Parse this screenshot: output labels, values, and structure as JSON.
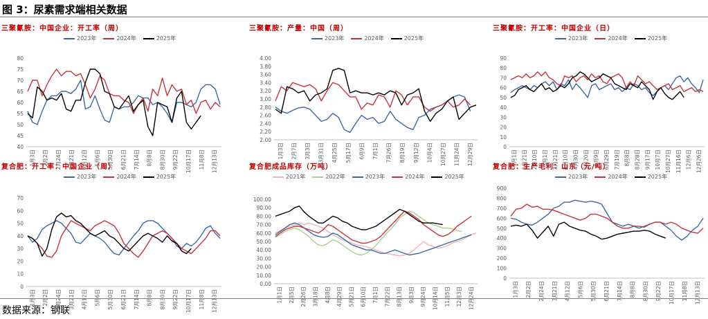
{
  "figure_title": "图 3：尿素需求端相关数据",
  "source": "数据来源：钢联",
  "chart_data": [
    {
      "type": "line",
      "title": "三聚氰胺：中国企业：开工率（周）",
      "ylim": [
        40,
        80
      ],
      "yticks": [
        "40",
        "45",
        "50",
        "55",
        "60",
        "65",
        "70",
        "75",
        "80"
      ],
      "xlabels": [
        "1月3日",
        "2月2日",
        "2月24日",
        "3月21日",
        "4月12日",
        "5月6日",
        "5月30日",
        "6月21日",
        "7月14日",
        "8月8日",
        "8月30日",
        "9月22日",
        "10月17日",
        "11月8日",
        "12月13日"
      ],
      "series": [
        {
          "name": "2023年",
          "color": "#3a67a8",
          "values": [
            56,
            51,
            50,
            56,
            61,
            63,
            63,
            65,
            65,
            64,
            66,
            70,
            57,
            58,
            63,
            57,
            52,
            51,
            58,
            57,
            58,
            58,
            60,
            63,
            62,
            62,
            59,
            60,
            58,
            55,
            51,
            60,
            60,
            59,
            58,
            60,
            66,
            68,
            68,
            66,
            59
          ]
        },
        {
          "name": "2024年",
          "color": "#c8323a",
          "values": [
            65,
            70,
            70,
            63,
            68,
            72,
            75,
            72,
            74,
            74,
            72,
            73,
            68,
            62,
            66,
            72,
            70,
            64,
            63,
            63,
            61,
            60,
            55,
            59,
            62,
            56,
            66,
            63,
            71,
            63,
            68,
            65,
            66,
            59,
            61,
            55,
            60,
            61,
            57,
            60,
            58
          ]
        },
        {
          "name": "2025年",
          "color": "#000000",
          "values": [
            55,
            53,
            67,
            65,
            61,
            62,
            61,
            64,
            57,
            56,
            61,
            61,
            69,
            75,
            75,
            73,
            65,
            64,
            58,
            57,
            60,
            63,
            56,
            59,
            61,
            49,
            45,
            60,
            59,
            58,
            51,
            62,
            65,
            51,
            48,
            51,
            54
          ]
        }
      ]
    },
    {
      "type": "line",
      "title": "三聚氰胺：产量：中国（周）",
      "ylim": [
        2.0,
        4.0
      ],
      "yticks": [
        "2.00",
        "2.20",
        "2.40",
        "2.60",
        "2.80",
        "3.00",
        "3.20",
        "3.40",
        "3.60",
        "3.80",
        "4.00"
      ],
      "xlabels": [
        "1月3日",
        "2月7日",
        "3月3日",
        "3月31日",
        "4月25日",
        "5月17日",
        "6月9日",
        "7月1日",
        "7月26日",
        "8月19日",
        "9月12日",
        "10月4日",
        "10月27日",
        "11月24日",
        "12月29日"
      ],
      "series": [
        {
          "name": "2023年",
          "color": "#3a67a8",
          "values": [
            2.8,
            2.7,
            2.65,
            2.72,
            2.78,
            2.8,
            2.75,
            2.6,
            2.45,
            2.5,
            2.65,
            2.55,
            2.25,
            2.18,
            2.4,
            2.6,
            2.5,
            2.55,
            2.4,
            2.45,
            2.7,
            2.5,
            2.4,
            2.3,
            2.25,
            2.55,
            2.6,
            2.75,
            2.8,
            2.85,
            2.95,
            3.05,
            3.1,
            3.05,
            2.7
          ]
        },
        {
          "name": "2024年",
          "color": "#c8323a",
          "values": [
            2.95,
            3.3,
            3.2,
            3.4,
            3.35,
            3.3,
            3.35,
            3.25,
            2.95,
            3.2,
            3.4,
            3.35,
            3.2,
            3.05,
            3.05,
            2.75,
            2.9,
            2.85,
            3.1,
            3.05,
            2.8,
            3.2,
            3.1,
            2.85,
            3.05,
            3.05,
            2.8,
            2.7,
            2.8,
            2.85,
            2.95,
            2.8,
            2.85,
            3.0,
            2.85
          ]
        },
        {
          "name": "2025年",
          "color": "#000000",
          "values": [
            2.75,
            2.65,
            3.3,
            3.25,
            3.15,
            3.2,
            2.95,
            3.1,
            3.15,
            3.25,
            3.7,
            3.75,
            3.7,
            3.15,
            3.2,
            3.15,
            3.15,
            3.1,
            3.15,
            3.1,
            3.2,
            3.15,
            2.85,
            3.1,
            3.15,
            3.25,
            2.7,
            2.45,
            2.65,
            2.75,
            2.95,
            3.05,
            2.5,
            2.65,
            2.8,
            2.85
          ]
        }
      ]
    },
    {
      "type": "line",
      "title": "三聚氰胺：开工率：中国企业（日）",
      "ylim": [
        0,
        90
      ],
      "yticks": [
        "0",
        "10",
        "20",
        "30",
        "40",
        "50",
        "60",
        "70",
        "80",
        "90"
      ],
      "xlabels": [
        "1月1日",
        "1月21日",
        "2月10日",
        "3月1日",
        "3月21日",
        "4月10日",
        "4月30日",
        "5月20日",
        "6月9日",
        "6月29日",
        "7月19日",
        "8月8日",
        "8月28日",
        "9月17日",
        "10月7日",
        "10月27日",
        "11月16日",
        "12月6日",
        "12月26日"
      ],
      "series": [
        {
          "name": "2023年",
          "color": "#3a67a8",
          "values": [
            55,
            58,
            60,
            62,
            60,
            58,
            62,
            60,
            64,
            66,
            62,
            66,
            58,
            64,
            62,
            68,
            58,
            64,
            60,
            55,
            50,
            62,
            64,
            58,
            60,
            62,
            64,
            58,
            60,
            56,
            60,
            58,
            64,
            62,
            58,
            60,
            55,
            52,
            56,
            60,
            62,
            58,
            64,
            70,
            72,
            66,
            70,
            64,
            60,
            55,
            68
          ]
        },
        {
          "name": "2024年",
          "color": "#c8323a",
          "values": [
            68,
            70,
            72,
            70,
            74,
            70,
            72,
            76,
            72,
            76,
            70,
            68,
            64,
            62,
            72,
            70,
            72,
            66,
            70,
            72,
            68,
            74,
            70,
            72,
            66,
            64,
            70,
            72,
            74,
            70,
            60,
            66,
            62,
            72,
            68,
            64,
            66,
            62,
            58,
            60,
            62,
            64,
            58,
            60,
            62,
            56,
            58,
            60,
            56,
            58,
            56
          ]
        },
        {
          "name": "2025年",
          "color": "#000000",
          "values": [
            50,
            52,
            58,
            60,
            62,
            58,
            56,
            60,
            64,
            58,
            60,
            56,
            58,
            62,
            60,
            64,
            70,
            72,
            76,
            74,
            70,
            66,
            68,
            70,
            74,
            72,
            70,
            64,
            62,
            60,
            58,
            64,
            62,
            60,
            66,
            62,
            58,
            48,
            56,
            60,
            54,
            50,
            48,
            52,
            56,
            50
          ]
        }
      ]
    },
    {
      "type": "line",
      "title": "复合肥：开工率：中国企业（周）",
      "ylim": [
        0,
        70
      ],
      "yticks": [
        "0",
        "10",
        "20",
        "30",
        "40",
        "50",
        "60",
        "70"
      ],
      "xlabels": [
        "1月3日",
        "2月2日",
        "2月24日",
        "3月21日",
        "4月12日",
        "5月6日",
        "5月30日",
        "6月21日",
        "7月14日",
        "8月8日",
        "8月30日",
        "9月22日",
        "10月17日",
        "11月8日",
        "12月13日"
      ],
      "series": [
        {
          "name": "2023年",
          "color": "#3a67a8",
          "values": [
            40,
            35,
            38,
            45,
            48,
            50,
            52,
            50,
            46,
            42,
            35,
            34,
            38,
            42,
            40,
            38,
            35,
            30,
            26,
            25,
            30,
            35,
            40,
            44,
            50,
            52,
            52,
            50,
            46,
            42,
            38,
            32,
            30,
            34,
            32,
            35,
            40,
            46,
            48,
            42,
            38
          ]
        },
        {
          "name": "2024年",
          "color": "#c8323a",
          "values": [
            40,
            38,
            34,
            30,
            24,
            23,
            28,
            40,
            46,
            52,
            50,
            48,
            46,
            44,
            48,
            50,
            52,
            50,
            48,
            42,
            34,
            30,
            26,
            23,
            28,
            34,
            40,
            42,
            44,
            42,
            38,
            34,
            30,
            28,
            26,
            30,
            34,
            38,
            44,
            44,
            40
          ]
        },
        {
          "name": "2025年",
          "color": "#000000",
          "values": [
            40,
            38,
            34,
            24,
            30,
            45,
            55,
            58,
            55,
            56,
            52,
            50,
            46,
            42,
            40,
            42,
            44,
            40,
            38,
            34,
            30,
            28,
            32,
            36,
            40,
            42,
            40,
            38,
            35,
            40,
            36,
            34,
            28,
            26,
            30
          ]
        }
      ]
    },
    {
      "type": "line",
      "title": "复合肥成品库存（万吨）",
      "ylim": [
        0,
        100
      ],
      "yticks": [
        "0.00",
        "10.00",
        "20.00",
        "30.00",
        "40.00",
        "50.00",
        "60.00",
        "70.00",
        "80.00",
        "90.00",
        "100.00"
      ],
      "xlabels": [
        "1月1日",
        "2月5日",
        "2月26日",
        "3月18日",
        "4月8日",
        "4月29日",
        "5月21日",
        "6月10日",
        "7月1日",
        "7月22日",
        "8月13日",
        "9月3日",
        "9月24日",
        "10月14日",
        "11月5日",
        "12月3日",
        "12月24日"
      ],
      "series": [
        {
          "name": "2021年",
          "color": "#f2b3b6",
          "values": [
            60,
            63,
            66,
            68,
            70,
            72,
            70,
            72,
            70,
            68,
            66,
            62,
            58,
            55,
            52,
            50,
            48,
            46,
            45,
            44,
            42,
            40,
            38,
            36,
            35,
            34,
            33,
            34,
            36,
            40,
            45,
            50,
            46,
            44,
            42,
            43,
            45,
            48,
            50,
            52,
            55,
            58,
            60
          ]
        },
        {
          "name": "2022年",
          "color": "#a9d18e",
          "values": [
            55,
            58,
            62,
            64,
            66,
            64,
            60,
            56,
            50,
            46,
            45,
            48,
            52,
            50,
            46,
            42,
            38,
            35,
            34,
            36,
            40,
            45,
            52,
            58,
            64,
            70,
            78,
            82,
            86,
            84,
            80,
            76,
            72,
            70,
            68,
            66,
            66,
            65,
            63,
            62
          ]
        },
        {
          "name": "2023年",
          "color": "#3a67a8",
          "values": [
            58,
            62,
            66,
            70,
            72,
            70,
            66,
            62,
            58,
            56,
            55,
            56,
            60,
            58,
            54,
            50,
            46,
            44,
            42,
            40,
            40,
            38,
            36,
            36,
            38,
            40,
            38,
            36,
            34,
            35,
            36,
            38,
            40,
            42,
            44,
            46,
            48,
            50,
            52,
            54,
            56,
            58
          ]
        },
        {
          "name": "2024年",
          "color": "#c8323a",
          "values": [
            56,
            60,
            64,
            66,
            68,
            68,
            66,
            64,
            62,
            60,
            64,
            70,
            68,
            64,
            60,
            56,
            52,
            50,
            48,
            48,
            50,
            52,
            56,
            62,
            68,
            74,
            80,
            86,
            84,
            80,
            76,
            70,
            66,
            62,
            58,
            56,
            58,
            62,
            68,
            72,
            76,
            80
          ]
        },
        {
          "name": "2025年",
          "color": "#000000",
          "values": [
            80,
            82,
            84,
            86,
            90,
            92,
            85,
            80,
            76,
            72,
            72,
            76,
            80,
            78,
            74,
            72,
            68,
            66,
            64,
            64,
            66,
            68,
            72,
            76,
            80,
            84,
            88,
            86,
            82,
            78,
            74,
            72,
            72,
            72,
            71,
            70
          ]
        }
      ]
    },
    {
      "type": "line",
      "title": "复合肥：生产毛利：山东（元/吨）",
      "ylim": [
        0,
        900
      ],
      "yticks": [
        "0",
        "100",
        "200",
        "300",
        "400",
        "500",
        "600",
        "700",
        "800",
        "900"
      ],
      "xlabels": [
        "1月3日",
        "2月2日",
        "2月24日",
        "3月21日",
        "4月12日",
        "5月6日",
        "5月30日",
        "6月21日",
        "7月14日",
        "8月8日",
        "8月30日",
        "9月22日",
        "10月17日",
        "11月8日",
        "12月13日"
      ],
      "series": [
        {
          "name": "2023年",
          "color": "#3a67a8",
          "values": [
            600,
            590,
            560,
            540,
            530,
            560,
            600,
            640,
            700,
            720,
            760,
            760,
            780,
            770,
            760,
            770,
            760,
            740,
            650,
            560,
            540,
            520,
            540,
            520,
            500,
            520,
            540,
            560,
            560,
            520,
            480,
            420,
            380,
            420,
            480,
            520,
            600
          ]
        },
        {
          "name": "2024年",
          "color": "#c8323a",
          "values": [
            620,
            690,
            700,
            740,
            710,
            720,
            690,
            690,
            680,
            660,
            640,
            620,
            600,
            580,
            600,
            640,
            640,
            620,
            600,
            560,
            520,
            500,
            500,
            520,
            520,
            510,
            540,
            560,
            560,
            540,
            560,
            540,
            500,
            480,
            460,
            450,
            500
          ]
        },
        {
          "name": "2025年",
          "color": "#000000",
          "values": [
            520,
            530,
            520,
            540,
            480,
            400,
            460,
            520,
            420,
            540,
            560,
            520,
            500,
            480,
            470,
            440,
            420,
            390,
            400,
            420,
            440,
            450,
            460,
            470,
            470,
            480,
            470,
            440,
            420,
            400
          ]
        }
      ]
    }
  ]
}
